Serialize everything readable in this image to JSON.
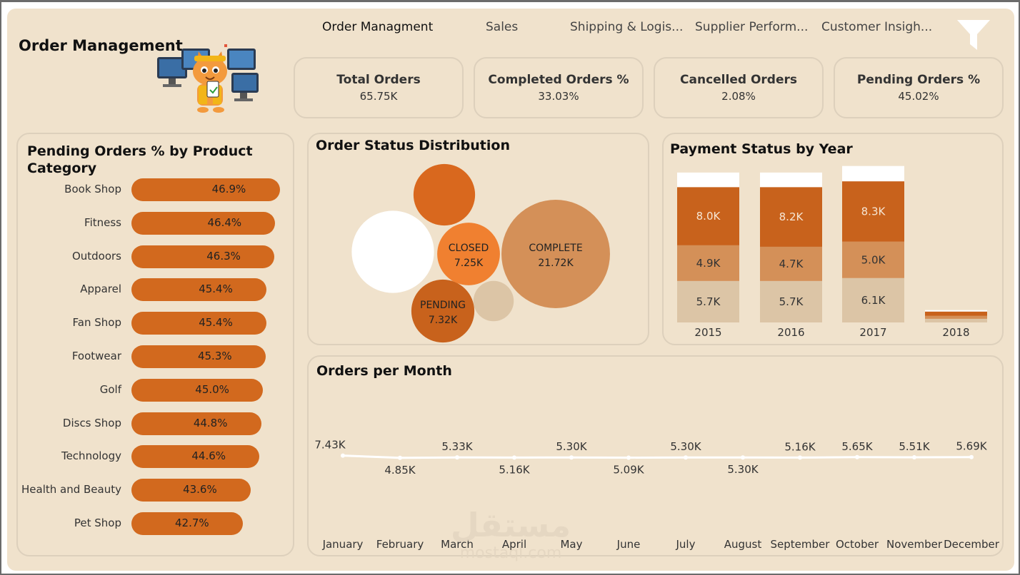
{
  "header": {
    "title": "Order Management",
    "nav": [
      {
        "label": "Order Managment",
        "active": true
      },
      {
        "label": "Sales",
        "active": false
      },
      {
        "label": "Shipping & Logis...",
        "active": false
      },
      {
        "label": "Supplier Perform...",
        "active": false
      },
      {
        "label": "Customer Insigh...",
        "active": false
      }
    ],
    "filter_icon": "funnel-filter-icon",
    "mascot_icon": "cat-mascot-illustration"
  },
  "kpis": [
    {
      "label": "Total Orders",
      "value": "65.75K"
    },
    {
      "label": "Completed Orders %",
      "value": "33.03%"
    },
    {
      "label": "Cancelled Orders",
      "value": "2.08%"
    },
    {
      "label": "Pending Orders %",
      "value": "45.02%"
    }
  ],
  "colors": {
    "background": "#f0e2cc",
    "accent": "#d2691e",
    "orange_dark": "#c8621c",
    "orange_mid": "#d49058",
    "tan": "#dcc5a6",
    "white": "#ffffff"
  },
  "chart_data": [
    {
      "type": "bar",
      "title": "Pending Orders % by Product Category",
      "categories": [
        "Book Shop",
        "Fitness",
        "Outdoors",
        "Apparel",
        "Fan Shop",
        "Footwear",
        "Golf",
        "Discs Shop",
        "Technology",
        "Health and Beauty",
        "Pet Shop"
      ],
      "values": [
        46.9,
        46.4,
        46.3,
        45.4,
        45.4,
        45.3,
        45.0,
        44.8,
        44.6,
        43.6,
        42.7
      ],
      "labels": [
        "46.9%",
        "46.4%",
        "46.3%",
        "45.4%",
        "45.4%",
        "45.3%",
        "45.0%",
        "44.8%",
        "44.6%",
        "43.6%",
        "42.7%"
      ]
    },
    {
      "type": "bubble",
      "title": "Order Status Distribution",
      "bubbles": [
        {
          "name": "COMPLETE",
          "value": 21.72,
          "label": "21.72K",
          "color": "#d49058"
        },
        {
          "name": "PENDING",
          "value": 7.32,
          "label": "7.32K",
          "color": "#c8621c"
        },
        {
          "name": "CLOSED",
          "value": 7.25,
          "label": "7.25K",
          "color": "#f08030"
        },
        {
          "name": "",
          "value": 12.5,
          "label": "",
          "color": "#ffffff"
        },
        {
          "name": "",
          "value": 7.0,
          "label": "",
          "color": "#d9681e"
        },
        {
          "name": "",
          "value": 3.0,
          "label": "",
          "color": "#dcc5a6"
        }
      ]
    },
    {
      "type": "bar",
      "title": "Payment Status by Year",
      "categories": [
        "2015",
        "2016",
        "2017",
        "2018"
      ],
      "series": [
        {
          "values": [
            5.7,
            5.7,
            6.1,
            0.5
          ],
          "labels": [
            "5.7K",
            "5.7K",
            "6.1K",
            ""
          ],
          "color": "#dcc5a6"
        },
        {
          "values": [
            4.9,
            4.7,
            5.0,
            0.4
          ],
          "labels": [
            "4.9K",
            "4.7K",
            "5.0K",
            ""
          ],
          "color": "#d49058"
        },
        {
          "values": [
            8.0,
            8.2,
            8.3,
            0.6
          ],
          "labels": [
            "8.0K",
            "8.2K",
            "8.3K",
            ""
          ],
          "color": "#c8621c"
        },
        {
          "values": [
            2.0,
            2.0,
            2.1,
            0.2
          ],
          "labels": [
            "",
            "",
            "",
            ""
          ],
          "color": "#ffffff"
        }
      ]
    },
    {
      "type": "line",
      "title": "Orders per Month",
      "categories": [
        "January",
        "February",
        "March",
        "April",
        "May",
        "June",
        "July",
        "August",
        "September",
        "October",
        "November",
        "December"
      ],
      "values": [
        7.43,
        4.85,
        5.33,
        5.16,
        5.3,
        5.09,
        5.3,
        5.3,
        5.16,
        5.65,
        5.51,
        5.69
      ],
      "labels": [
        "7.43K",
        "4.85K",
        "5.33K",
        "5.16K",
        "5.30K",
        "5.09K",
        "5.30K",
        "5.30K",
        "5.16K",
        "5.65K",
        "5.51K",
        "5.69K"
      ]
    }
  ]
}
